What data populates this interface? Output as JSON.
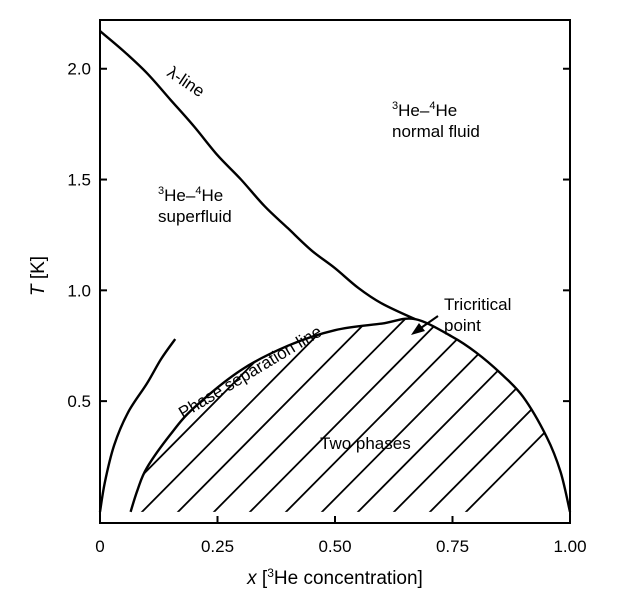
{
  "chart_data": {
    "type": "line",
    "xlabel": {
      "italic": "x",
      "pre": " [",
      "sup": "3",
      "post": "He concentration]"
    },
    "ylabel": {
      "italic": "T",
      "post": " [K]"
    },
    "xlim": [
      0,
      1.0
    ],
    "ylim": [
      -0.05,
      2.22
    ],
    "x_ticks": [
      {
        "value": 0,
        "label": "0"
      },
      {
        "value": 0.25,
        "label": "0.25"
      },
      {
        "value": 0.5,
        "label": "0.50"
      },
      {
        "value": 0.75,
        "label": "0.75"
      },
      {
        "value": 1.0,
        "label": "1.00"
      }
    ],
    "y_ticks": [
      {
        "value": 0.5,
        "label": "0.5"
      },
      {
        "value": 1.0,
        "label": "1.0"
      },
      {
        "value": 1.5,
        "label": "1.5"
      },
      {
        "value": 2.0,
        "label": "2.0"
      }
    ],
    "series": [
      {
        "key": "lambda_line",
        "points": [
          [
            0,
            2.17
          ],
          [
            0.05,
            2.08
          ],
          [
            0.1,
            1.98
          ],
          [
            0.15,
            1.86
          ],
          [
            0.2,
            1.74
          ],
          [
            0.25,
            1.61
          ],
          [
            0.3,
            1.5
          ],
          [
            0.35,
            1.38
          ],
          [
            0.4,
            1.28
          ],
          [
            0.45,
            1.18
          ],
          [
            0.5,
            1.1
          ],
          [
            0.55,
            1.01
          ],
          [
            0.6,
            0.94
          ],
          [
            0.67,
            0.87
          ]
        ]
      },
      {
        "key": "phase_separation_line",
        "points": [
          [
            0.065,
            0.0
          ],
          [
            0.08,
            0.1
          ],
          [
            0.1,
            0.2
          ],
          [
            0.15,
            0.35
          ],
          [
            0.2,
            0.47
          ],
          [
            0.3,
            0.64
          ],
          [
            0.4,
            0.75
          ],
          [
            0.5,
            0.82
          ],
          [
            0.6,
            0.85
          ],
          [
            0.67,
            0.87
          ],
          [
            0.75,
            0.79
          ],
          [
            0.8,
            0.72
          ],
          [
            0.85,
            0.63
          ],
          [
            0.9,
            0.52
          ],
          [
            0.95,
            0.34
          ],
          [
            0.98,
            0.18
          ],
          [
            1.0,
            0.0
          ]
        ]
      },
      {
        "key": "solid_curve",
        "points": [
          [
            0,
            0.0
          ],
          [
            0.01,
            0.13
          ],
          [
            0.03,
            0.3
          ],
          [
            0.06,
            0.45
          ],
          [
            0.1,
            0.58
          ],
          [
            0.13,
            0.69
          ],
          [
            0.16,
            0.78
          ]
        ]
      }
    ],
    "tricritical_point": {
      "x": 0.67,
      "T": 0.87
    },
    "annotations": {
      "lambda_line": "λ-line",
      "normal_fluid": {
        "sup1": "3",
        "mid": "He–",
        "sup2": "4",
        "post": "He",
        "line2": "normal fluid"
      },
      "superfluid": {
        "sup1": "3",
        "mid": "He–",
        "sup2": "4",
        "post": "He",
        "line2": "superfluid"
      },
      "tricritical": {
        "line1": "Tricritical",
        "line2": "point"
      },
      "phase_separation": "Phase separation line",
      "two_phases": "Two phases"
    },
    "grid": false
  }
}
